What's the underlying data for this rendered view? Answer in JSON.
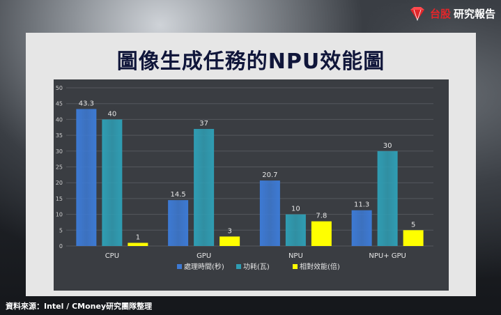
{
  "brand": {
    "red_text": "台股",
    "white_text": "研究報告",
    "icon": "diamond-crown-icon"
  },
  "title": "圖像生成任務的NPU效能圖",
  "source": "資料來源：Intel / CMoney研究團隊整理",
  "colors": {
    "series1": "#3d7ad4",
    "series2": "#2f9db3",
    "series3": "#ffff00"
  },
  "chart_data": {
    "type": "bar",
    "categories": [
      "CPU",
      "GPU",
      "NPU",
      "NPU+ GPU"
    ],
    "series": [
      {
        "name": "處理時間(秒)",
        "values": [
          43.3,
          14.5,
          20.7,
          11.3
        ]
      },
      {
        "name": "功耗(瓦)",
        "values": [
          40,
          37,
          10,
          30
        ]
      },
      {
        "name": "相對效能(倍)",
        "values": [
          1,
          3,
          7.8,
          5
        ]
      }
    ],
    "ylim": [
      0,
      50
    ],
    "yticks": [
      0,
      5,
      10,
      15,
      20,
      25,
      30,
      35,
      40,
      45,
      50
    ],
    "grid": true,
    "legend": "bottom"
  }
}
